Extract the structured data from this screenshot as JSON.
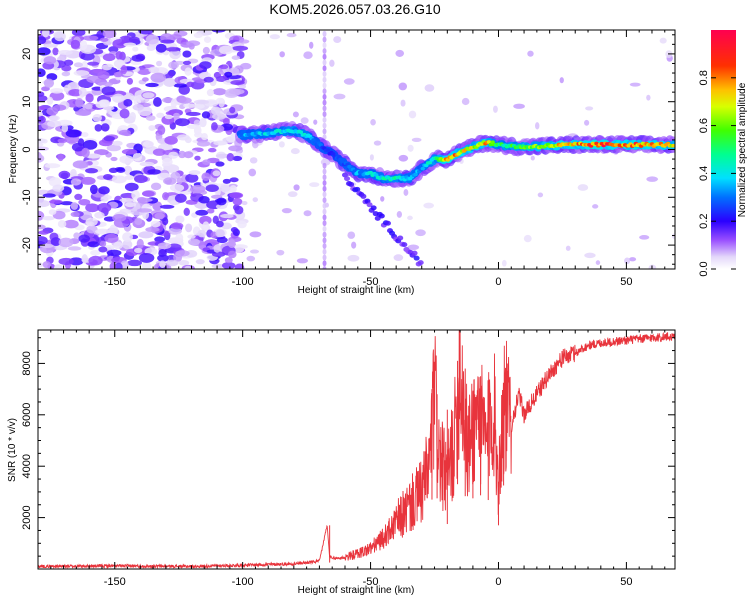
{
  "title": "KOM5.2026.057.03.26.G10",
  "colors": {
    "snr_line": "#e8343c",
    "frame": "#000000",
    "cb_low": "#ffffff",
    "cb_stops": [
      "#ffffff",
      "#d8c8f8",
      "#8000ff",
      "#0000ff",
      "#00d8ff",
      "#00ff80",
      "#40ff00",
      "#ffff00",
      "#ff8000",
      "#ff0000",
      "#ff0040"
    ]
  },
  "chart_data": [
    {
      "type": "heatmap",
      "name": "spectrogram",
      "xlabel": "Height of straight line (km)",
      "ylabel": "Frequency (Hz)",
      "xlim": [
        -180,
        69
      ],
      "ylim": [
        -25,
        25
      ],
      "x_ticks": [
        -150,
        -100,
        -50,
        0,
        50
      ],
      "x_tick_labels": [
        "-150",
        "-100",
        "-50",
        "0",
        "50"
      ],
      "y_ticks": [
        -20,
        -10,
        0,
        10,
        20
      ],
      "y_tick_labels": [
        "-20",
        "-10",
        "0",
        "10",
        "20"
      ],
      "colorbar": {
        "label": "Normalized spectral amplitude",
        "range": [
          0,
          1
        ],
        "ticks": [
          0.0,
          0.2,
          0.4,
          0.6,
          0.8
        ],
        "tick_labels": [
          "0.0",
          "0.2",
          "0.4",
          "0.6",
          "0.8"
        ]
      },
      "ridge": {
        "x": [
          -100,
          -90,
          -80,
          -75,
          -70,
          -65,
          -60,
          -55,
          -50,
          -45,
          -40,
          -35,
          -30,
          -25,
          -20,
          -15,
          -10,
          -5,
          0,
          10,
          20,
          30,
          40,
          50,
          60,
          69
        ],
        "freq": [
          3,
          3.5,
          4,
          3,
          1,
          -1,
          -3,
          -5,
          -5,
          -6,
          -6,
          -6,
          -4,
          -2,
          -2,
          -0.5,
          0.5,
          1.5,
          1,
          0.5,
          0.8,
          1,
          1,
          1,
          1,
          1
        ],
        "amplitude": [
          0.35,
          0.4,
          0.45,
          0.4,
          0.3,
          0.25,
          0.3,
          0.35,
          0.4,
          0.45,
          0.45,
          0.4,
          0.35,
          0.5,
          0.85,
          0.75,
          0.7,
          0.8,
          0.5,
          0.6,
          0.7,
          0.8,
          0.9,
          0.85,
          0.8,
          0.75
        ]
      },
      "secondary_branch": {
        "x": [
          -60,
          -55,
          -50,
          -45,
          -40,
          -35,
          -30
        ],
        "freq": [
          -6,
          -9,
          -12,
          -15,
          -18,
          -21,
          -24
        ]
      }
    },
    {
      "type": "line",
      "name": "snr",
      "xlabel": "Height of straight line (km)",
      "ylabel": "SNR (10 * v/v)",
      "xlim": [
        -180,
        69
      ],
      "ylim": [
        0,
        9300
      ],
      "x_ticks": [
        -150,
        -100,
        -50,
        0,
        50
      ],
      "x_tick_labels": [
        "-150",
        "-100",
        "-50",
        "0",
        "50"
      ],
      "y_ticks": [
        2000,
        4000,
        6000,
        8000
      ],
      "y_tick_labels": [
        "2000",
        "4000",
        "6000",
        "8000"
      ],
      "series": [
        {
          "name": "SNR",
          "x": [
            -180,
            -150,
            -120,
            -100,
            -80,
            -70,
            -67,
            -66,
            -65,
            -60,
            -55,
            -50,
            -45,
            -40,
            -35,
            -30,
            -27,
            -25,
            -23,
            -20,
            -17,
            -15,
            -12,
            -10,
            -8,
            -5,
            -2,
            0,
            2,
            5,
            8,
            10,
            15,
            20,
            25,
            30,
            35,
            40,
            50,
            60,
            69
          ],
          "y": [
            100,
            120,
            100,
            150,
            200,
            300,
            1700,
            500,
            400,
            450,
            600,
            800,
            1200,
            1800,
            2400,
            3000,
            4000,
            6800,
            4200,
            3500,
            5200,
            8000,
            4500,
            5500,
            6200,
            4800,
            6500,
            3400,
            6500,
            5600,
            6800,
            6000,
            6800,
            7600,
            8200,
            8400,
            8700,
            8800,
            8900,
            9000,
            9050
          ]
        }
      ],
      "spikes": {
        "x": [
          -66,
          -26,
          -24,
          -20,
          -16,
          -13,
          -10,
          -7,
          -4,
          0,
          2
        ],
        "y": [
          1700,
          7000,
          6800,
          6200,
          8100,
          7800,
          6900,
          7500,
          7000,
          3400,
          6800
        ]
      }
    }
  ]
}
